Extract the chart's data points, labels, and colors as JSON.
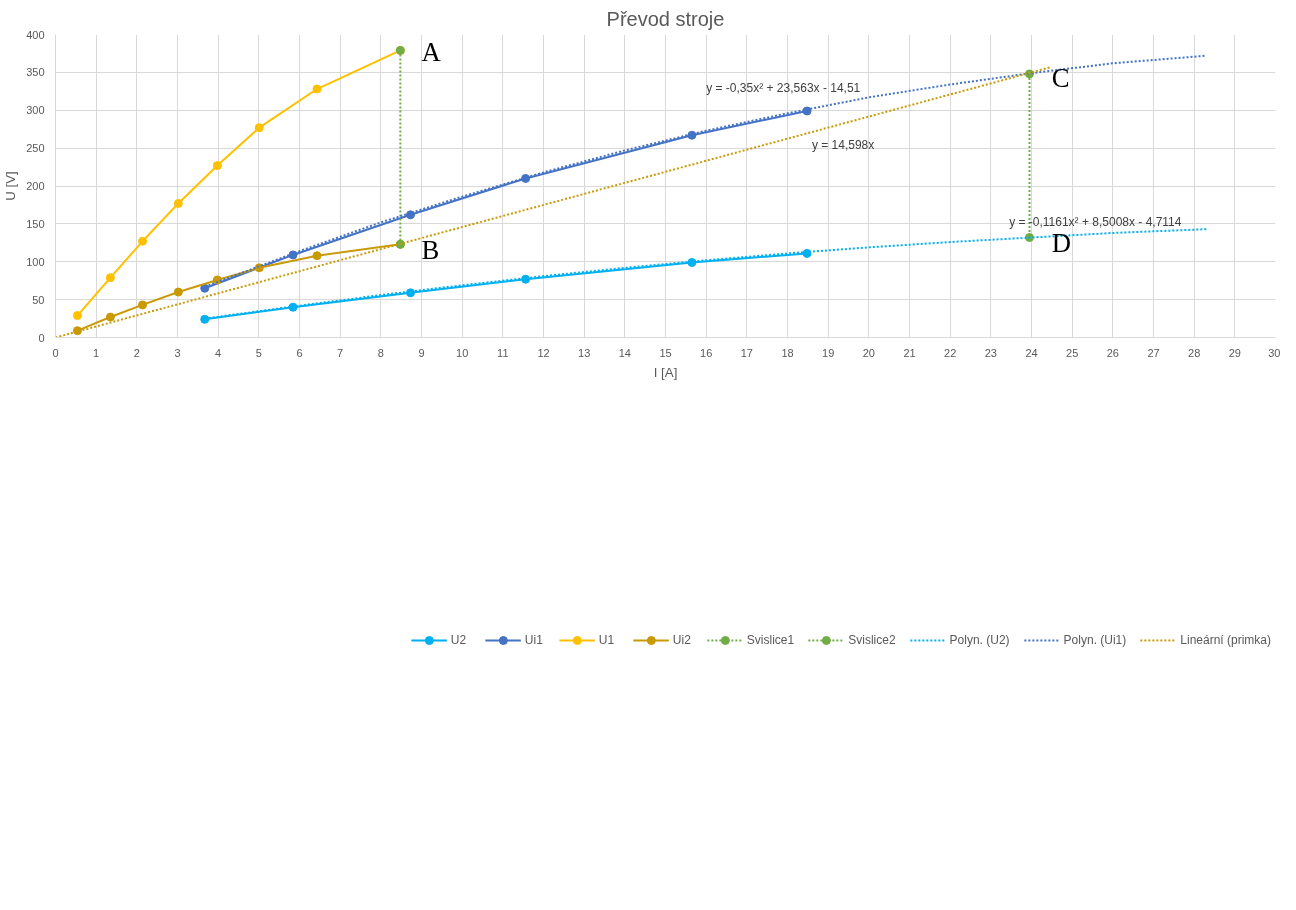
{
  "chart_data": {
    "type": "line",
    "title": "Převod stroje",
    "xlabel": "I [A]",
    "ylabel": "U [V]",
    "xlim": [
      0,
      30
    ],
    "ylim": [
      0,
      400
    ],
    "xticks": [
      0,
      1,
      2,
      3,
      4,
      5,
      6,
      7,
      8,
      9,
      10,
      11,
      12,
      13,
      14,
      15,
      16,
      17,
      18,
      19,
      20,
      21,
      22,
      23,
      24,
      25,
      26,
      27,
      28,
      29,
      30
    ],
    "yticks": [
      0,
      50,
      100,
      150,
      200,
      250,
      300,
      350,
      400
    ],
    "grid": true,
    "legend": "bottom",
    "series": [
      {
        "name": "U2",
        "color": "#00b0f0",
        "marker": "circle",
        "line_style": "solid",
        "x": [
          3.67,
          5.84,
          8.73,
          11.56,
          15.65,
          18.48
        ],
        "values": [
          24,
          40,
          59,
          77,
          99,
          111
        ]
      },
      {
        "name": "Ui1",
        "color": "#4472c4",
        "marker": "circle",
        "line_style": "solid",
        "x": [
          3.67,
          5.84,
          8.73,
          11.56,
          15.65,
          18.48
        ],
        "values": [
          65,
          109,
          162,
          210,
          267,
          299
        ]
      },
      {
        "name": "U1",
        "color": "#ffc000",
        "marker": "circle",
        "line_style": "solid",
        "x": [
          0.54,
          1.35,
          2.14,
          3.02,
          3.98,
          5.01,
          6.43,
          8.48
        ],
        "values": [
          29,
          79,
          127,
          177,
          227,
          277,
          328,
          379
        ]
      },
      {
        "name": "Ui2",
        "color": "#c99a06",
        "marker": "circle",
        "line_style": "solid",
        "x": [
          0.54,
          1.35,
          2.14,
          3.02,
          3.98,
          5.01,
          6.43,
          8.48
        ],
        "values": [
          9,
          27,
          43,
          60,
          76,
          92,
          108,
          123
        ]
      },
      {
        "name": "Svislice1",
        "color": "#70ad47",
        "marker": "circle",
        "line_style": "dotted",
        "x": [
          8.48,
          8.48
        ],
        "values": [
          379,
          123
        ]
      },
      {
        "name": "Svislice2",
        "color": "#70ad47",
        "marker": "circle",
        "line_style": "dotted",
        "x": [
          23.95,
          23.95
        ],
        "values": [
          348,
          132
        ]
      },
      {
        "name": "Polyn. (U2)",
        "color": "#00b0f0",
        "marker": "none",
        "line_style": "dotted",
        "x": [
          3.67,
          6,
          8,
          10,
          12,
          14,
          16,
          18,
          20,
          22,
          24,
          26,
          28.3
        ],
        "values": [
          25,
          42,
          56,
          69,
          81,
          92,
          102,
          111,
          119,
          126,
          132,
          138,
          143
        ]
      },
      {
        "name": "Polyn. (Ui1)",
        "color": "#4472c4",
        "marker": "none",
        "line_style": "dotted",
        "x": [
          3.67,
          6,
          8,
          10,
          12,
          14,
          16,
          18,
          20,
          22,
          24,
          26,
          28.3
        ],
        "values": [
          67,
          114,
          152,
          186,
          218,
          247,
          273,
          296,
          317,
          334,
          349,
          362,
          372
        ]
      },
      {
        "name": "Lineární (primka)",
        "color": "#c99a06",
        "marker": "none",
        "line_style": "dotted",
        "x": [
          0,
          24.48
        ],
        "values": [
          0,
          357
        ]
      }
    ],
    "annotations": [
      "A",
      "B",
      "C",
      "D",
      "y = -0,35x² + 23,563x - 14,51",
      "y = 14,598x",
      "y = -0,1161x² + 8,5008x - 4,7114"
    ]
  }
}
